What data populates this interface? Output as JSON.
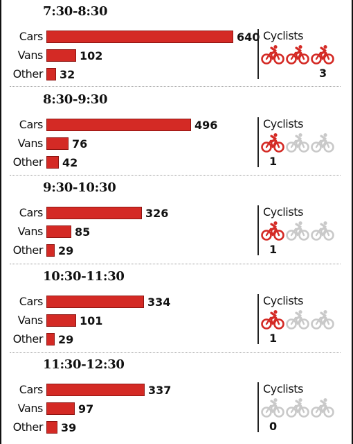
{
  "colors": {
    "bar": "#d42a25",
    "cyclist_on": "#d42a25",
    "cyclist_off": "#c9c9c9"
  },
  "icons": {
    "cyclist": "bicycle-rider-icon"
  },
  "cyclists_label": "Cyclists",
  "chart_data": [
    {
      "type": "bar",
      "title": "7:30-8:30",
      "categories": [
        "Cars",
        "Vans",
        "Other"
      ],
      "values": [
        640,
        102,
        32
      ],
      "cyclists": 3,
      "cyclists_label": "Cyclists"
    },
    {
      "type": "bar",
      "title": "8:30-9:30",
      "categories": [
        "Cars",
        "Vans",
        "Other"
      ],
      "values": [
        496,
        76,
        42
      ],
      "cyclists": 1,
      "cyclists_label": "Cyclists"
    },
    {
      "type": "bar",
      "title": "9:30-10:30",
      "categories": [
        "Cars",
        "Vans",
        "Other"
      ],
      "values": [
        326,
        85,
        29
      ],
      "cyclists": 1,
      "cyclists_label": "Cyclists"
    },
    {
      "type": "bar",
      "title": "10:30-11:30",
      "categories": [
        "Cars",
        "Vans",
        "Other"
      ],
      "values": [
        334,
        101,
        29
      ],
      "cyclists": 1,
      "cyclists_label": "Cyclists"
    },
    {
      "type": "bar",
      "title": "11:30-12:30",
      "categories": [
        "Cars",
        "Vans",
        "Other"
      ],
      "values": [
        337,
        97,
        39
      ],
      "cyclists": 0,
      "cyclists_label": "Cyclists"
    }
  ]
}
